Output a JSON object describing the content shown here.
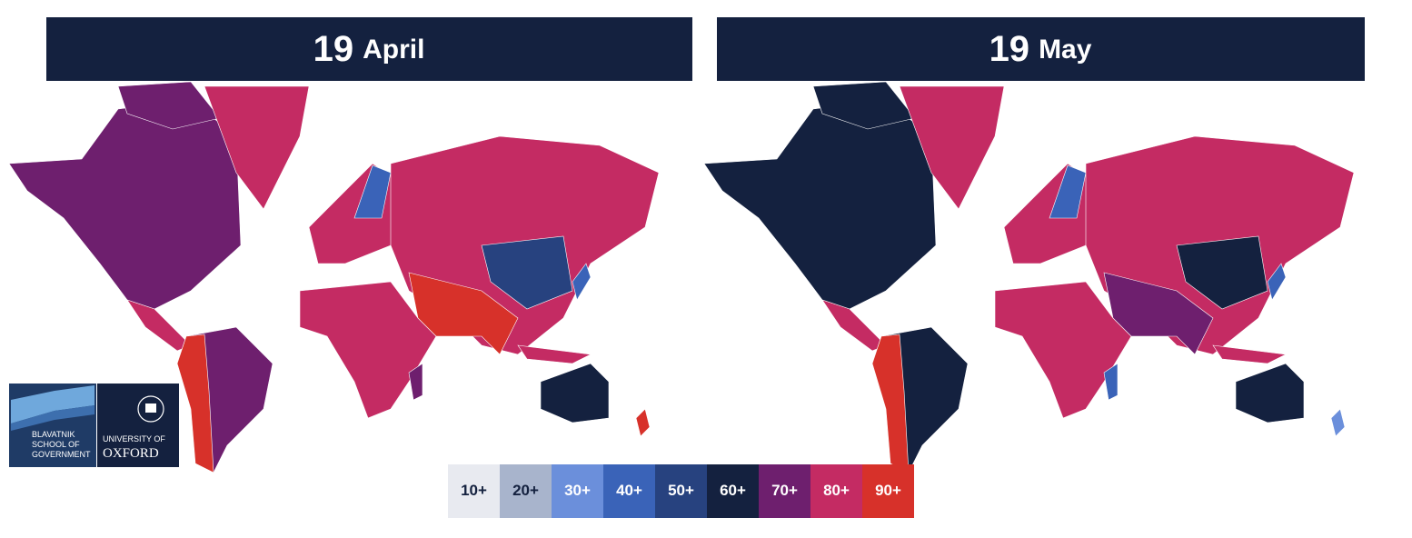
{
  "panels": [
    {
      "day": "19",
      "month": "April"
    },
    {
      "day": "19",
      "month": "May"
    }
  ],
  "legend": [
    {
      "label": "10+",
      "color": "#e8eaf0"
    },
    {
      "label": "20+",
      "color": "#a8b4cc"
    },
    {
      "label": "30+",
      "color": "#6b8fdb"
    },
    {
      "label": "40+",
      "color": "#3a63b8"
    },
    {
      "label": "50+",
      "color": "#27427f"
    },
    {
      "label": "60+",
      "color": "#14213f"
    },
    {
      "label": "70+",
      "color": "#6e1f6e"
    },
    {
      "label": "80+",
      "color": "#c42b63"
    },
    {
      "label": "90+",
      "color": "#d7312a"
    }
  ],
  "logo": {
    "school": [
      "BLAVATNIK",
      "SCHOOL OF",
      "GOVERNMENT"
    ],
    "university": [
      "UNIVERSITY OF",
      "OXFORD"
    ]
  }
}
